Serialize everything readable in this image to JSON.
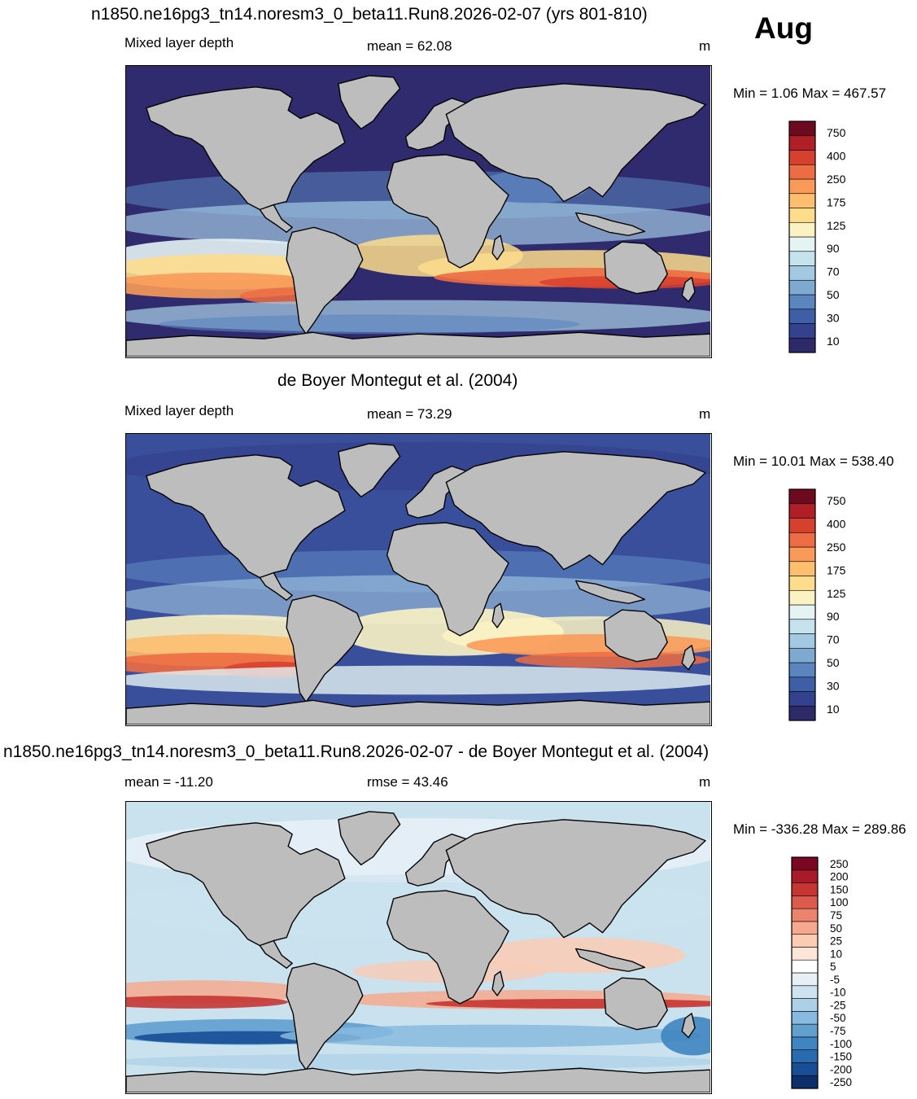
{
  "header": {
    "month": "Aug"
  },
  "panels": [
    {
      "title": "n1850.ne16pg3_tn14.noresm3_0_beta11.Run8.2026-02-07 (yrs 801-810)",
      "left_label": "Mixed layer depth",
      "center_label": "mean =  62.08",
      "units": "m",
      "minmax": "Min =   1.06 Max = 467.57",
      "scale": "abs",
      "bg": "#302a6e"
    },
    {
      "title": "de Boyer Montegut et al. (2004)",
      "left_label": "Mixed layer depth",
      "center_label": "mean =  73.29",
      "units": "m",
      "minmax": "Min =  10.01 Max = 538.40",
      "scale": "abs",
      "bg": "#3a4f9b"
    },
    {
      "title": "n1850.ne16pg3_tn14.noresm3_0_beta11.Run8.2026-02-07 - de Boyer Montegut et al. (2004)",
      "left_label": "mean = -11.20",
      "center_label": "rmse =  43.46",
      "units": "m",
      "minmax": "Min = -336.28 Max = 289.86",
      "scale": "diff",
      "bg": "#c9e2ee"
    }
  ],
  "colorbars": {
    "abs": {
      "colors": [
        "#2e2a6a",
        "#34418f",
        "#3f5ea8",
        "#5b85bf",
        "#7eaad2",
        "#a3c9e2",
        "#c7e2ef",
        "#e6f3f3",
        "#fbf2c4",
        "#fddc8c",
        "#fdbe6e",
        "#f99a59",
        "#ee6c43",
        "#d8402e",
        "#b01f27",
        "#6d0a20"
      ],
      "labels": [
        "10",
        "30",
        "50",
        "70",
        "90",
        "125",
        "175",
        "250",
        "400",
        "750"
      ]
    },
    "diff": {
      "colors": [
        "#0c2f6b",
        "#184e96",
        "#2a6aae",
        "#3f85c1",
        "#619fcf",
        "#87bade",
        "#acd0e8",
        "#cde3f0",
        "#e6f0f6",
        "#ffffff",
        "#fde6d8",
        "#fbcbb4",
        "#f6a98e",
        "#ec846d",
        "#dc5b4c",
        "#c73533",
        "#a8192a",
        "#7a0822"
      ],
      "labels": [
        "-250",
        "-200",
        "-150",
        "-100",
        "-75",
        "-50",
        "-25",
        "-10",
        "-5",
        "5",
        "10",
        "25",
        "50",
        "75",
        "100",
        "150",
        "200",
        "250"
      ]
    }
  }
}
